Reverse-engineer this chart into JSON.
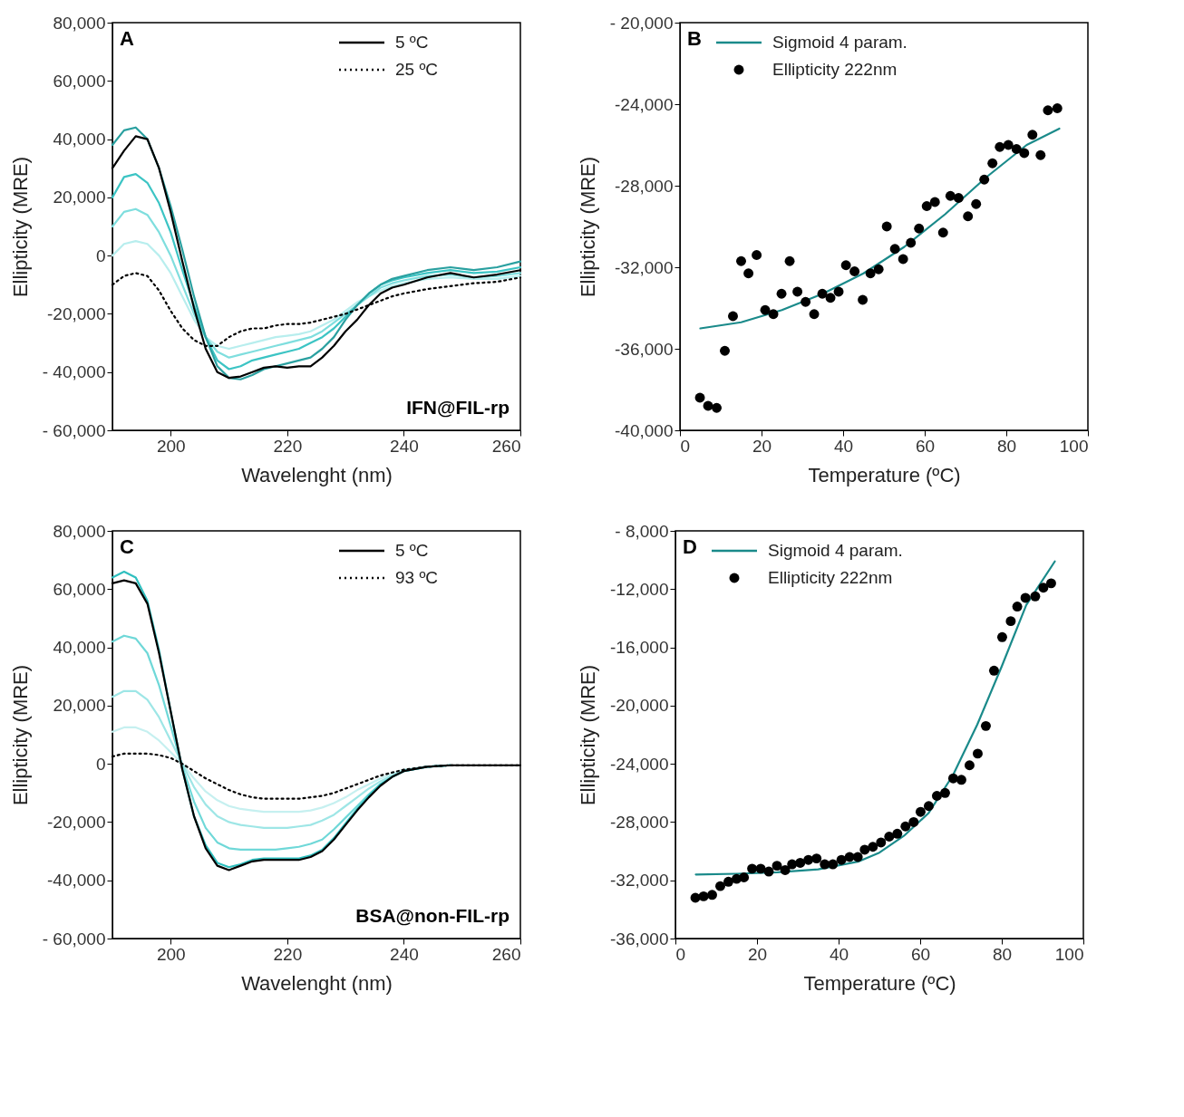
{
  "chart_data": [
    {
      "type": "line",
      "xlabel": "Wavelenght (nm)",
      "ylabel": "Ellipticity (MRE)",
      "annotations": [
        "A",
        "IFN@FIL-rp"
      ],
      "legend": "top right",
      "grid": false,
      "xlim": [
        190,
        260
      ],
      "xticks": [
        200,
        220,
        240,
        260
      ],
      "ylim": [
        -60000,
        80000
      ],
      "yticks": [
        {
          "value": -60000,
          "label": "- 60,000"
        },
        {
          "value": -40000,
          "label": "- 40,000"
        },
        {
          "value": -20000,
          "label": "-20,000"
        },
        {
          "value": 0,
          "label": "0"
        },
        {
          "value": 20000,
          "label": "20,000"
        },
        {
          "value": 40000,
          "label": "40,000"
        },
        {
          "value": 60000,
          "label": "60,000"
        },
        {
          "value": 80000,
          "label": "80,000"
        }
      ],
      "x": [
        190,
        192,
        194,
        196,
        198,
        200,
        202,
        204,
        206,
        208,
        210,
        212,
        214,
        216,
        218,
        220,
        222,
        224,
        226,
        228,
        230,
        232,
        234,
        236,
        238,
        240,
        244,
        248,
        252,
        256,
        260
      ],
      "series": [
        {
          "color": "#b8eeee",
          "values": [
            0,
            4000,
            5000,
            4000,
            0,
            -6000,
            -14000,
            -22000,
            -28000,
            -31000,
            -32000,
            -31000,
            -30000,
            -29000,
            -28000,
            -27500,
            -27000,
            -26000,
            -24000,
            -22000,
            -19000,
            -16000,
            -14000,
            -12000,
            -10500,
            -9500,
            -8000,
            -7500,
            -8000,
            -8000,
            -7000
          ]
        },
        {
          "color": "#7fdede",
          "values": [
            10000,
            15000,
            16000,
            14000,
            8000,
            0,
            -10000,
            -20000,
            -28000,
            -33000,
            -35000,
            -34000,
            -33000,
            -32000,
            -31000,
            -30000,
            -29000,
            -28000,
            -26000,
            -23000,
            -20000,
            -17000,
            -14000,
            -11000,
            -9500,
            -8500,
            -7000,
            -6500,
            -7500,
            -7000,
            -6000
          ]
        },
        {
          "color": "#3cc4c4",
          "values": [
            20000,
            27000,
            28000,
            25000,
            18000,
            8000,
            -5000,
            -17000,
            -28000,
            -36000,
            -39000,
            -38000,
            -36000,
            -35000,
            -34000,
            -33000,
            -32000,
            -30000,
            -28000,
            -25000,
            -21000,
            -17000,
            -13000,
            -10000,
            -8500,
            -7500,
            -6000,
            -5000,
            -6000,
            -5500,
            -4000
          ]
        },
        {
          "color": "#2aa0a0",
          "values": [
            38000,
            43000,
            44000,
            40000,
            30000,
            17000,
            2000,
            -14000,
            -28000,
            -38000,
            -42000,
            -42500,
            -41000,
            -39000,
            -38000,
            -37000,
            -36000,
            -35000,
            -32000,
            -28000,
            -22000,
            -17000,
            -13000,
            -10000,
            -8000,
            -7000,
            -5000,
            -4000,
            -5000,
            -4000,
            -2000
          ]
        },
        {
          "name": "5 ºC",
          "color": "#000000",
          "line_style": "solid",
          "values": [
            30000,
            36000,
            41000,
            40000,
            30000,
            15000,
            -2000,
            -18000,
            -32000,
            -40000,
            -42000,
            -41500,
            -40000,
            -38500,
            -38000,
            -38500,
            -38000,
            -38000,
            -35000,
            -31000,
            -26000,
            -22000,
            -17000,
            -13000,
            -11000,
            -10000,
            -7500,
            -6000,
            -7500,
            -6500,
            -5000
          ]
        },
        {
          "name": "25 ºC",
          "color": "#000000",
          "line_style": "dotted",
          "values": [
            -10000,
            -7000,
            -6000,
            -7000,
            -12000,
            -19000,
            -25000,
            -29000,
            -31000,
            -31000,
            -28000,
            -26000,
            -25000,
            -25000,
            -24000,
            -23500,
            -23500,
            -23000,
            -22000,
            -21000,
            -20000,
            -18500,
            -17000,
            -15500,
            -14000,
            -13000,
            -11500,
            -10500,
            -9500,
            -9000,
            -7500
          ]
        }
      ]
    },
    {
      "type": "scatter",
      "xlabel": "Temperature (ºC)",
      "ylabel": "Ellipticity (MRE)",
      "annotations": [
        "B"
      ],
      "legend": "top left",
      "grid": false,
      "xlim": [
        0,
        100
      ],
      "xticks": [
        0,
        20,
        40,
        60,
        80,
        100
      ],
      "ylim": [
        -40000,
        -20000
      ],
      "yticks": [
        {
          "value": -40000,
          "label": "-40,000"
        },
        {
          "value": -36000,
          "label": "-36,000"
        },
        {
          "value": -32000,
          "label": "-32,000"
        },
        {
          "value": -28000,
          "label": "-28,000"
        },
        {
          "value": -24000,
          "label": "-24,000"
        },
        {
          "value": -20000,
          "label": "- 20,000"
        }
      ],
      "series": [
        {
          "name": "Sigmoid 4 param.",
          "type": "line",
          "color": "#1a8a8a",
          "line_style": "solid",
          "x": [
            5,
            15,
            25,
            35,
            45,
            55,
            65,
            75,
            85,
            93
          ],
          "values": [
            -35000,
            -34700,
            -34100,
            -33300,
            -32300,
            -31000,
            -29400,
            -27600,
            -26000,
            -25200
          ]
        },
        {
          "name": "Ellipticity 222nm",
          "type": "scatter",
          "marker": "circle",
          "color": "#000000",
          "x": [
            4.9,
            6.9,
            9.0,
            11.0,
            13.0,
            15.0,
            16.8,
            18.8,
            20.9,
            22.9,
            24.9,
            26.9,
            28.8,
            30.8,
            32.9,
            34.9,
            36.9,
            38.9,
            40.7,
            42.8,
            44.8,
            46.7,
            48.7,
            50.7,
            52.7,
            54.7,
            56.6,
            58.6,
            60.5,
            62.5,
            64.5,
            66.3,
            68.3,
            70.6,
            72.6,
            74.6,
            76.6,
            78.4,
            80.5,
            82.5,
            84.4,
            86.4,
            88.4,
            90.2,
            92.5
          ],
          "values": [
            -38400,
            -38800,
            -38900,
            -36100,
            -34400,
            -31700,
            -32300,
            -31400,
            -34100,
            -34300,
            -33300,
            -31700,
            -33200,
            -33700,
            -34300,
            -33300,
            -33500,
            -33200,
            -31900,
            -32200,
            -33600,
            -32300,
            -32100,
            -30000,
            -31100,
            -31600,
            -30800,
            -30100,
            -29000,
            -28800,
            -30300,
            -28500,
            -28600,
            -29500,
            -28900,
            -27700,
            -26900,
            -26100,
            -26000,
            -26200,
            -26400,
            -25500,
            -26500,
            -24300,
            -24200
          ]
        }
      ]
    },
    {
      "type": "line",
      "xlabel": "Wavelenght (nm)",
      "ylabel": "Ellipticity (MRE)",
      "annotations": [
        "C",
        "BSA@non-FIL-rp"
      ],
      "legend": "top right",
      "grid": false,
      "xlim": [
        190,
        260
      ],
      "xticks": [
        200,
        220,
        240,
        260
      ],
      "ylim": [
        -60000,
        80000
      ],
      "yticks": [
        {
          "value": -60000,
          "label": "- 60,000"
        },
        {
          "value": -40000,
          "label": "-40,000"
        },
        {
          "value": -20000,
          "label": "-20,000"
        },
        {
          "value": 0,
          "label": "0"
        },
        {
          "value": 20000,
          "label": "20,000"
        },
        {
          "value": 40000,
          "label": "40,000"
        },
        {
          "value": 60000,
          "label": "60,000"
        },
        {
          "value": 80000,
          "label": "80,000"
        }
      ],
      "x": [
        190,
        192,
        194,
        196,
        198,
        200,
        202,
        204,
        206,
        208,
        210,
        212,
        214,
        216,
        218,
        220,
        222,
        224,
        226,
        228,
        230,
        232,
        234,
        236,
        238,
        240,
        244,
        248,
        252,
        256,
        260
      ],
      "series": [
        {
          "color": "#c6f0f0",
          "values": [
            11000,
            12500,
            12500,
            11000,
            8000,
            4000,
            0,
            -5000,
            -9500,
            -12500,
            -14500,
            -15500,
            -16000,
            -16500,
            -16500,
            -16500,
            -16500,
            -16000,
            -15000,
            -13500,
            -11500,
            -9000,
            -7000,
            -5000,
            -3500,
            -2000,
            -1000,
            -500,
            null,
            null,
            null
          ]
        },
        {
          "color": "#9ee6e6",
          "values": [
            23000,
            25000,
            25000,
            22000,
            16000,
            8000,
            0,
            -8000,
            -14000,
            -18000,
            -20000,
            -21000,
            -21500,
            -22000,
            -22000,
            -22000,
            -21500,
            -21000,
            -19500,
            -17500,
            -14500,
            -11500,
            -8500,
            -6000,
            -4000,
            -2500,
            -1000,
            -500,
            null,
            null,
            null
          ]
        },
        {
          "color": "#6fd8d8",
          "values": [
            42000,
            44000,
            43000,
            38000,
            27000,
            13000,
            -1000,
            -13000,
            -22000,
            -27000,
            -29000,
            -29500,
            -29500,
            -29500,
            -29500,
            -29000,
            -28500,
            -27500,
            -26000,
            -22500,
            -18500,
            -14500,
            -10500,
            -7000,
            -4500,
            -2500,
            -1000,
            -500,
            null,
            null,
            null
          ]
        },
        {
          "color": "#2fbfbf",
          "values": [
            64000,
            66000,
            64000,
            56000,
            39000,
            18000,
            -2000,
            -18000,
            -28000,
            -34000,
            -35500,
            -34500,
            -33000,
            -32500,
            -32500,
            -32500,
            -32500,
            -31500,
            -29500,
            -25500,
            -20500,
            -15500,
            -11000,
            -7000,
            -4500,
            -2500,
            -1000,
            -500,
            null,
            null,
            null
          ]
        },
        {
          "name": "5 ºC",
          "color": "#000000",
          "line_style": "solid",
          "values": [
            62000,
            63000,
            62000,
            55000,
            38000,
            18000,
            -2000,
            -18000,
            -29000,
            -35000,
            -36500,
            -35000,
            -33500,
            -33000,
            -33000,
            -33000,
            -33000,
            -32000,
            -30000,
            -26000,
            -21000,
            -16000,
            -11500,
            -7500,
            -4500,
            -2500,
            -1000,
            -500,
            -500,
            -500,
            -500
          ]
        },
        {
          "name": "93 ºC",
          "color": "#000000",
          "line_style": "dotted",
          "values": [
            2500,
            3500,
            3500,
            3500,
            3000,
            2000,
            0,
            -2500,
            -5000,
            -7000,
            -9000,
            -10500,
            -11500,
            -12000,
            -12000,
            -12000,
            -12000,
            -11500,
            -11000,
            -10000,
            -8500,
            -7000,
            -5500,
            -4000,
            -3000,
            -2000,
            -1000,
            -500,
            -500,
            -500,
            -500
          ]
        }
      ]
    },
    {
      "type": "scatter",
      "xlabel": "Temperature (ºC)",
      "ylabel": "Ellipticity (MRE)",
      "annotations": [
        "D"
      ],
      "legend": "top left",
      "grid": false,
      "xlim": [
        0,
        100
      ],
      "xticks": [
        0,
        20,
        40,
        60,
        80,
        100
      ],
      "ylim": [
        -36000,
        -8000
      ],
      "yticks": [
        {
          "value": -36000,
          "label": "-36,000"
        },
        {
          "value": -32000,
          "label": "-32,000"
        },
        {
          "value": -28000,
          "label": "-28,000"
        },
        {
          "value": -24000,
          "label": "-24,000"
        },
        {
          "value": -20000,
          "label": "-20,000"
        },
        {
          "value": -16000,
          "label": "-16,000"
        },
        {
          "value": -12000,
          "label": "-12,000"
        },
        {
          "value": -8000,
          "label": "- 8,000"
        }
      ],
      "series": [
        {
          "name": "Sigmoid 4 param.",
          "type": "line",
          "color": "#1a8a8a",
          "line_style": "solid",
          "x": [
            5,
            15,
            25,
            35,
            45,
            50,
            56,
            62,
            68,
            74,
            80,
            86,
            93
          ],
          "values": [
            -31600,
            -31550,
            -31450,
            -31250,
            -30700,
            -30100,
            -28950,
            -27400,
            -24800,
            -21300,
            -17300,
            -13100,
            -10100
          ]
        },
        {
          "name": "Ellipticity 222nm",
          "type": "scatter",
          "marker": "circle",
          "color": "#000000",
          "x": [
            4.9,
            6.9,
            9.0,
            11.0,
            13.0,
            15.0,
            16.8,
            18.8,
            20.9,
            22.9,
            24.9,
            26.9,
            28.6,
            30.6,
            32.6,
            34.6,
            36.6,
            38.6,
            40.7,
            42.7,
            44.7,
            46.4,
            48.4,
            50.4,
            52.4,
            54.4,
            56.4,
            58.4,
            60.1,
            62.1,
            64.1,
            66.1,
            68.1,
            70.1,
            72.1,
            74.1,
            76.1,
            78.1,
            80.1,
            82.2,
            83.8,
            85.8,
            88.2,
            90.2,
            92.1
          ],
          "values": [
            -33200,
            -33100,
            -33000,
            -32400,
            -32100,
            -31900,
            -31800,
            -31200,
            -31200,
            -31400,
            -31000,
            -31300,
            -30900,
            -30800,
            -30600,
            -30500,
            -30900,
            -30900,
            -30600,
            -30400,
            -30400,
            -29900,
            -29700,
            -29400,
            -29000,
            -28800,
            -28300,
            -28000,
            -27300,
            -26900,
            -26200,
            -26000,
            -25000,
            -25100,
            -24100,
            -23300,
            -21400,
            -17600,
            -15300,
            -14200,
            -13200,
            -12600,
            -12500,
            -11900,
            -11600
          ]
        }
      ]
    }
  ]
}
